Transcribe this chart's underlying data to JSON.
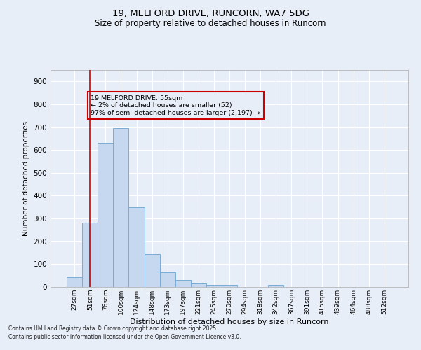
{
  "title1": "19, MELFORD DRIVE, RUNCORN, WA7 5DG",
  "title2": "Size of property relative to detached houses in Runcorn",
  "xlabel": "Distribution of detached houses by size in Runcorn",
  "ylabel": "Number of detached properties",
  "categories": [
    "27sqm",
    "51sqm",
    "76sqm",
    "100sqm",
    "124sqm",
    "148sqm",
    "173sqm",
    "197sqm",
    "221sqm",
    "245sqm",
    "270sqm",
    "294sqm",
    "318sqm",
    "342sqm",
    "367sqm",
    "391sqm",
    "415sqm",
    "439sqm",
    "464sqm",
    "488sqm",
    "512sqm"
  ],
  "values": [
    42,
    283,
    632,
    697,
    350,
    145,
    65,
    32,
    15,
    10,
    8,
    0,
    0,
    8,
    0,
    0,
    0,
    0,
    0,
    0,
    0
  ],
  "bar_color": "#c5d8f0",
  "bar_edge_color": "#7aadd4",
  "vline_x": 1,
  "vline_color": "#cc0000",
  "annotation_text": "19 MELFORD DRIVE: 55sqm\n← 2% of detached houses are smaller (52)\n97% of semi-detached houses are larger (2,197) →",
  "annotation_box_edge": "#cc0000",
  "ylim": [
    0,
    950
  ],
  "yticks": [
    0,
    100,
    200,
    300,
    400,
    500,
    600,
    700,
    800,
    900
  ],
  "bg_color": "#e8eef8",
  "grid_color": "#ffffff",
  "footer1": "Contains HM Land Registry data © Crown copyright and database right 2025.",
  "footer2": "Contains public sector information licensed under the Open Government Licence v3.0."
}
